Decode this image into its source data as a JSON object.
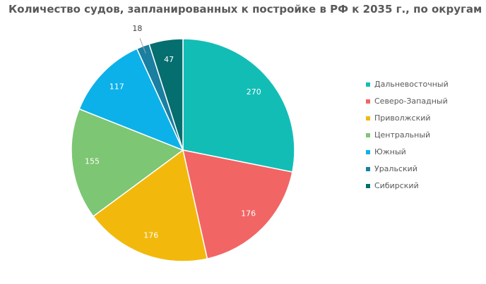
{
  "chart_data": {
    "type": "pie",
    "title": "Количество судов, запланированных к постройке в РФ к 2035 г., по округам",
    "categories": [
      "Дальневосточный",
      "Северо-Западный",
      "Приволжский",
      "Центральный",
      "Южный",
      "Уральский",
      "Сибирский"
    ],
    "values": [
      270,
      176,
      176,
      155,
      117,
      18,
      47
    ],
    "colors": [
      "#12bdb6",
      "#f26565",
      "#f2b90c",
      "#7dc673",
      "#0db1e9",
      "#1a7fa1",
      "#056e6e"
    ],
    "legend": "right"
  }
}
